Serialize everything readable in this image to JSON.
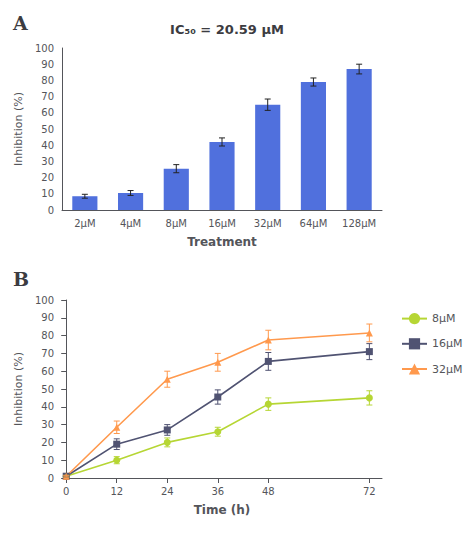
{
  "chart_data": [
    {
      "type": "bar",
      "annotation": "A",
      "title": "IC₅₀ = 20.59 μM",
      "xlabel": "Treatment",
      "ylabel": "Inhibition (%)",
      "categories": [
        "2μM",
        "4μM",
        "8μM",
        "16μM",
        "32μM",
        "64μM",
        "128μM"
      ],
      "values": [
        8.5,
        10.5,
        25.5,
        42.0,
        65.0,
        79.0,
        87.0
      ],
      "errors": [
        1.2,
        1.5,
        2.5,
        2.5,
        3.5,
        2.5,
        3.0
      ],
      "ylim": [
        0,
        100
      ],
      "yticks": [
        0,
        10,
        20,
        30,
        40,
        50,
        60,
        70,
        80,
        90,
        100
      ],
      "grid": false
    },
    {
      "type": "line",
      "annotation": "B",
      "xlabel": "Time (h)",
      "ylabel": "Inhibition (%)",
      "x": [
        0,
        12,
        24,
        36,
        48,
        72
      ],
      "series": [
        {
          "name": "8μM",
          "values": [
            1.0,
            10.0,
            20.0,
            26.0,
            41.5,
            45.0
          ],
          "errors": [
            0.5,
            2.0,
            2.5,
            2.5,
            3.5,
            4.0
          ],
          "marker": "circle",
          "line_style": "solid"
        },
        {
          "name": "16μM",
          "values": [
            1.0,
            19.0,
            27.0,
            45.5,
            65.5,
            71.0
          ],
          "errors": [
            0.5,
            3.0,
            3.0,
            4.0,
            5.0,
            4.5
          ],
          "marker": "rect",
          "line_style": "solid"
        },
        {
          "name": "32μM",
          "values": [
            1.0,
            28.5,
            55.5,
            65.0,
            77.5,
            81.5
          ],
          "errors": [
            0.5,
            3.5,
            4.5,
            5.0,
            5.5,
            5.0
          ],
          "marker": "triangle",
          "line_style": "solid"
        }
      ],
      "xlim": [
        -1,
        75
      ],
      "xticks": [
        0,
        12,
        24,
        36,
        48,
        72
      ],
      "ylim": [
        0,
        100
      ],
      "yticks": [
        0,
        10,
        20,
        30,
        40,
        50,
        60,
        70,
        80,
        90,
        100
      ],
      "grid": false,
      "legend": "right"
    }
  ]
}
